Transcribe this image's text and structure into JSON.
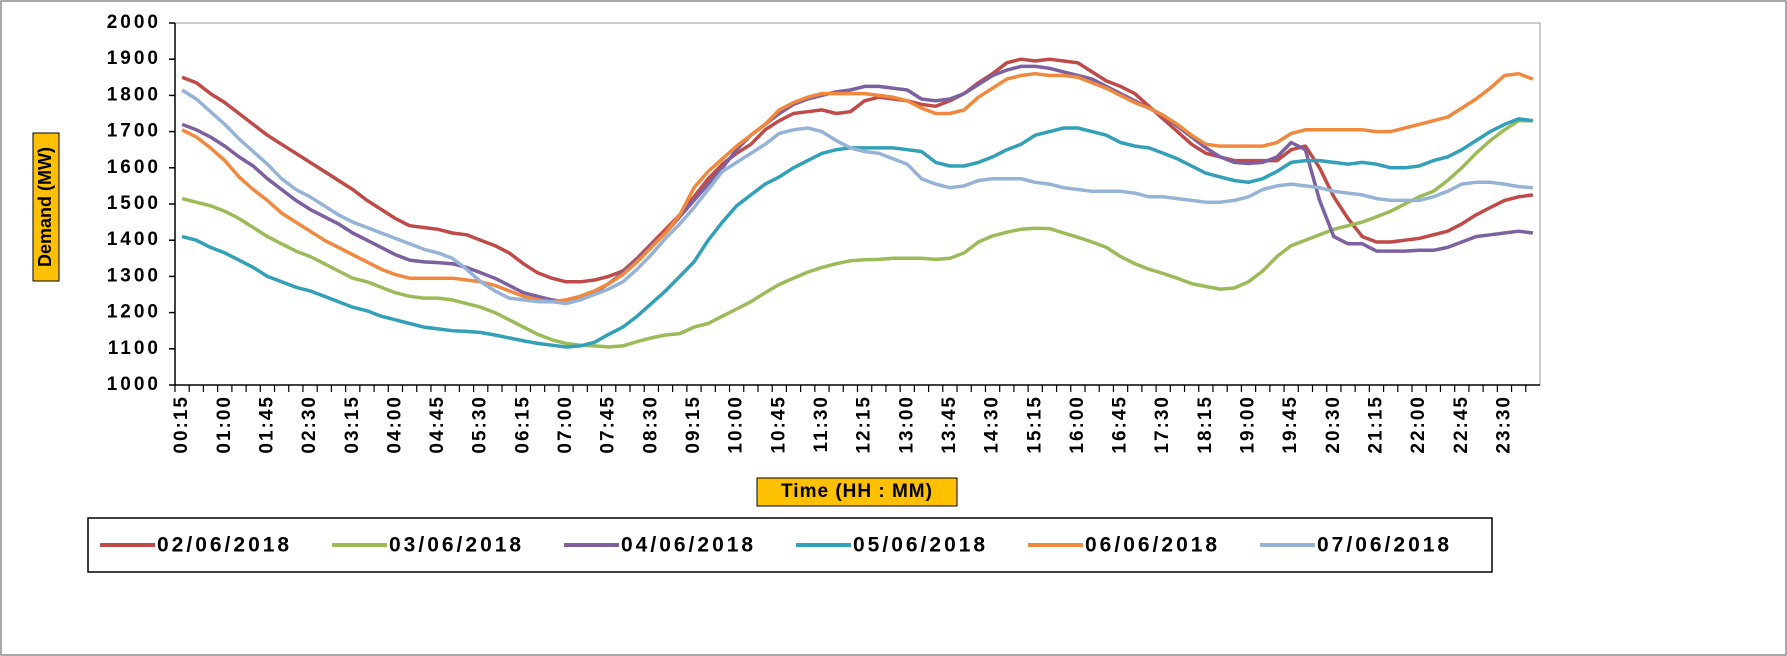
{
  "chart_data": {
    "type": "line",
    "y_label": "Demand (MW)",
    "x_label": "Time (HH : MM)",
    "categories": [
      "00:15",
      null,
      null,
      "01:00",
      null,
      null,
      "01:45",
      null,
      null,
      "02:30",
      null,
      null,
      "03:15",
      null,
      null,
      "04:00",
      null,
      null,
      "04:45",
      null,
      null,
      "05:30",
      null,
      null,
      "06:15",
      null,
      null,
      "07:00",
      null,
      null,
      "07:45",
      null,
      null,
      "08:30",
      null,
      null,
      "09:15",
      null,
      null,
      "10:00",
      null,
      null,
      "10:45",
      null,
      null,
      "11:30",
      null,
      null,
      "12:15",
      null,
      null,
      "13:00",
      null,
      null,
      "13:45",
      null,
      null,
      "14:30",
      null,
      null,
      "15:15",
      null,
      null,
      "16:00",
      null,
      null,
      "16:45",
      null,
      null,
      "17:30",
      null,
      null,
      "18:15",
      null,
      null,
      "19:00",
      null,
      null,
      "19:45",
      null,
      null,
      "20:30",
      null,
      null,
      "21:15",
      null,
      null,
      "22:00",
      null,
      null,
      "22:45",
      null,
      null,
      "23:30",
      null,
      null
    ],
    "ylim": [
      1000,
      2000
    ],
    "yticks": [
      1000,
      1100,
      1200,
      1300,
      1400,
      1500,
      1600,
      1700,
      1800,
      1900,
      2000
    ],
    "series": [
      {
        "name": "02/06/2018",
        "color": "#be4b48",
        "values": [
          1850,
          1835,
          1805,
          1780,
          1750,
          1720,
          1690,
          1665,
          1640,
          1615,
          1590,
          1565,
          1540,
          1510,
          1485,
          1460,
          1440,
          1435,
          1430,
          1420,
          1415,
          1400,
          1385,
          1365,
          1335,
          1310,
          1295,
          1285,
          1285,
          1290,
          1300,
          1315,
          1350,
          1390,
          1430,
          1470,
          1520,
          1570,
          1610,
          1640,
          1665,
          1705,
          1730,
          1750,
          1755,
          1760,
          1750,
          1755,
          1785,
          1795,
          1790,
          1785,
          1775,
          1770,
          1785,
          1805,
          1835,
          1860,
          1890,
          1900,
          1895,
          1900,
          1895,
          1890,
          1865,
          1840,
          1825,
          1805,
          1770,
          1735,
          1700,
          1665,
          1640,
          1630,
          1620,
          1620,
          1620,
          1620,
          1650,
          1660,
          1600,
          1520,
          1460,
          1410,
          1395,
          1395,
          1400,
          1405,
          1415,
          1425,
          1445,
          1470,
          1490,
          1510,
          1520,
          1525
        ]
      },
      {
        "name": "03/06/2018",
        "color": "#9bbb59",
        "values": [
          1515,
          1505,
          1495,
          1480,
          1460,
          1435,
          1410,
          1390,
          1370,
          1355,
          1335,
          1315,
          1295,
          1285,
          1270,
          1255,
          1245,
          1240,
          1240,
          1235,
          1225,
          1215,
          1200,
          1180,
          1160,
          1140,
          1125,
          1115,
          1110,
          1108,
          1105,
          1108,
          1120,
          1130,
          1138,
          1142,
          1160,
          1170,
          1190,
          1210,
          1230,
          1255,
          1278,
          1295,
          1312,
          1325,
          1335,
          1343,
          1346,
          1347,
          1350,
          1350,
          1350,
          1347,
          1350,
          1365,
          1395,
          1412,
          1422,
          1430,
          1433,
          1432,
          1420,
          1408,
          1395,
          1380,
          1355,
          1335,
          1320,
          1308,
          1295,
          1280,
          1272,
          1265,
          1268,
          1285,
          1315,
          1355,
          1385,
          1400,
          1415,
          1430,
          1440,
          1450,
          1465,
          1480,
          1500,
          1520,
          1535,
          1565,
          1600,
          1640,
          1675,
          1705,
          1730,
          1730
        ]
      },
      {
        "name": "04/06/2018",
        "color": "#7d60a0",
        "values": [
          1720,
          1705,
          1685,
          1660,
          1630,
          1605,
          1570,
          1540,
          1510,
          1485,
          1465,
          1445,
          1420,
          1400,
          1380,
          1360,
          1345,
          1340,
          1338,
          1335,
          1325,
          1310,
          1295,
          1275,
          1255,
          1245,
          1235,
          1230,
          1235,
          1255,
          1280,
          1310,
          1345,
          1385,
          1420,
          1465,
          1510,
          1555,
          1600,
          1650,
          1690,
          1720,
          1750,
          1775,
          1790,
          1800,
          1810,
          1815,
          1825,
          1825,
          1820,
          1815,
          1790,
          1785,
          1790,
          1805,
          1830,
          1855,
          1870,
          1880,
          1880,
          1875,
          1865,
          1855,
          1845,
          1825,
          1805,
          1785,
          1765,
          1745,
          1715,
          1685,
          1655,
          1630,
          1615,
          1612,
          1615,
          1630,
          1670,
          1650,
          1510,
          1410,
          1390,
          1390,
          1370,
          1370,
          1370,
          1372,
          1372,
          1380,
          1395,
          1410,
          1415,
          1420,
          1425,
          1420
        ]
      },
      {
        "name": "05/06/2018",
        "color": "#31a0b8",
        "values": [
          1410,
          1400,
          1380,
          1365,
          1345,
          1325,
          1300,
          1285,
          1270,
          1260,
          1245,
          1230,
          1215,
          1205,
          1190,
          1180,
          1170,
          1160,
          1155,
          1150,
          1148,
          1145,
          1138,
          1130,
          1122,
          1115,
          1110,
          1105,
          1108,
          1118,
          1140,
          1160,
          1190,
          1225,
          1260,
          1300,
          1340,
          1400,
          1450,
          1495,
          1525,
          1555,
          1575,
          1600,
          1620,
          1640,
          1650,
          1655,
          1655,
          1655,
          1655,
          1650,
          1645,
          1615,
          1605,
          1605,
          1615,
          1630,
          1650,
          1665,
          1690,
          1700,
          1710,
          1710,
          1700,
          1690,
          1670,
          1660,
          1655,
          1640,
          1625,
          1605,
          1585,
          1575,
          1565,
          1560,
          1570,
          1590,
          1615,
          1620,
          1620,
          1615,
          1610,
          1615,
          1610,
          1600,
          1600,
          1605,
          1620,
          1630,
          1650,
          1675,
          1700,
          1720,
          1735,
          1730
        ]
      },
      {
        "name": "06/06/2018",
        "color": "#f0883e",
        "values": [
          1705,
          1685,
          1655,
          1620,
          1575,
          1540,
          1510,
          1475,
          1450,
          1425,
          1400,
          1380,
          1360,
          1340,
          1320,
          1305,
          1295,
          1295,
          1295,
          1295,
          1290,
          1285,
          1275,
          1260,
          1245,
          1235,
          1230,
          1235,
          1245,
          1260,
          1280,
          1305,
          1340,
          1380,
          1420,
          1470,
          1545,
          1590,
          1625,
          1660,
          1690,
          1720,
          1760,
          1780,
          1795,
          1805,
          1805,
          1805,
          1805,
          1800,
          1795,
          1785,
          1765,
          1750,
          1750,
          1760,
          1795,
          1820,
          1845,
          1855,
          1860,
          1855,
          1855,
          1850,
          1835,
          1820,
          1800,
          1780,
          1765,
          1745,
          1720,
          1690,
          1665,
          1660,
          1660,
          1660,
          1660,
          1670,
          1695,
          1705,
          1705,
          1705,
          1705,
          1705,
          1700,
          1700,
          1710,
          1720,
          1730,
          1740,
          1765,
          1790,
          1820,
          1855,
          1860,
          1845
        ]
      },
      {
        "name": "07/06/2018",
        "color": "#95b3d7",
        "values": [
          1815,
          1790,
          1755,
          1720,
          1680,
          1645,
          1610,
          1570,
          1540,
          1520,
          1495,
          1470,
          1450,
          1435,
          1420,
          1405,
          1390,
          1375,
          1365,
          1350,
          1320,
          1285,
          1260,
          1240,
          1235,
          1230,
          1230,
          1225,
          1235,
          1250,
          1265,
          1285,
          1320,
          1360,
          1405,
          1445,
          1490,
          1540,
          1590,
          1615,
          1640,
          1665,
          1695,
          1705,
          1710,
          1700,
          1675,
          1655,
          1645,
          1640,
          1625,
          1610,
          1570,
          1555,
          1545,
          1550,
          1565,
          1570,
          1570,
          1570,
          1560,
          1555,
          1545,
          1540,
          1535,
          1535,
          1535,
          1530,
          1520,
          1520,
          1515,
          1510,
          1505,
          1505,
          1510,
          1520,
          1540,
          1550,
          1555,
          1550,
          1545,
          1535,
          1530,
          1525,
          1515,
          1510,
          1510,
          1510,
          1520,
          1535,
          1555,
          1560,
          1560,
          1555,
          1548,
          1545
        ]
      }
    ]
  }
}
